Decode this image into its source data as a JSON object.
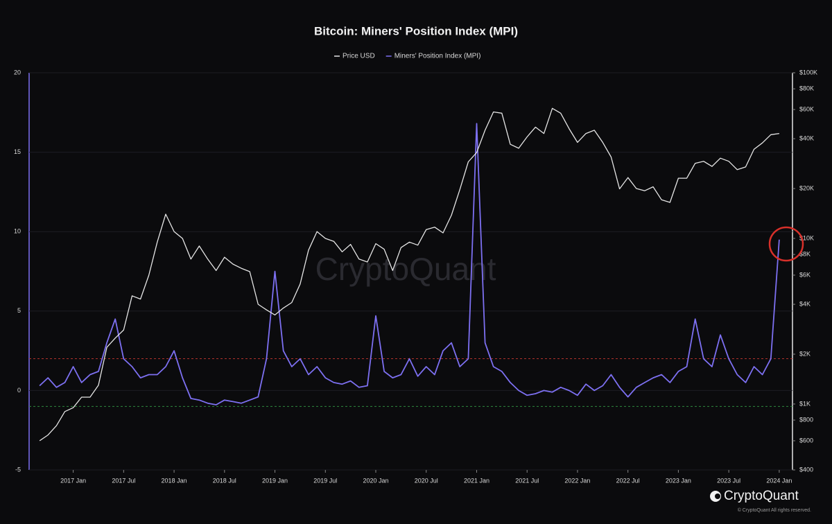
{
  "chart_data": {
    "type": "line",
    "title": "Bitcoin: Miners' Position Index (MPI)",
    "x": [
      "2016-09",
      "2016-10",
      "2016-11",
      "2016-12",
      "2017-01",
      "2017-02",
      "2017-03",
      "2017-04",
      "2017-05",
      "2017-06",
      "2017-07",
      "2017-08",
      "2017-09",
      "2017-10",
      "2017-11",
      "2017-12",
      "2018-01",
      "2018-02",
      "2018-03",
      "2018-04",
      "2018-05",
      "2018-06",
      "2018-07",
      "2018-08",
      "2018-09",
      "2018-10",
      "2018-11",
      "2018-12",
      "2019-01",
      "2019-02",
      "2019-03",
      "2019-04",
      "2019-05",
      "2019-06",
      "2019-07",
      "2019-08",
      "2019-09",
      "2019-10",
      "2019-11",
      "2019-12",
      "2020-01",
      "2020-02",
      "2020-03",
      "2020-04",
      "2020-05",
      "2020-06",
      "2020-07",
      "2020-08",
      "2020-09",
      "2020-10",
      "2020-11",
      "2020-12",
      "2021-01",
      "2021-02",
      "2021-03",
      "2021-04",
      "2021-05",
      "2021-06",
      "2021-07",
      "2021-08",
      "2021-09",
      "2021-10",
      "2021-11",
      "2021-12",
      "2022-01",
      "2022-02",
      "2022-03",
      "2022-04",
      "2022-05",
      "2022-06",
      "2022-07",
      "2022-08",
      "2022-09",
      "2022-10",
      "2022-11",
      "2022-12",
      "2023-01",
      "2023-02",
      "2023-03",
      "2023-04",
      "2023-05",
      "2023-06",
      "2023-07",
      "2023-08",
      "2023-09",
      "2023-10",
      "2023-11",
      "2023-12",
      "2024-01"
    ],
    "xlim": [
      "2016-08",
      "2024-02"
    ],
    "xticks": [
      {
        "value": "2017-01",
        "label": "2017 Jan"
      },
      {
        "value": "2017-07",
        "label": "2017 Jul"
      },
      {
        "value": "2018-01",
        "label": "2018 Jan"
      },
      {
        "value": "2018-07",
        "label": "2018 Jul"
      },
      {
        "value": "2019-01",
        "label": "2019 Jan"
      },
      {
        "value": "2019-07",
        "label": "2019 Jul"
      },
      {
        "value": "2020-01",
        "label": "2020 Jan"
      },
      {
        "value": "2020-07",
        "label": "2020 Jul"
      },
      {
        "value": "2021-01",
        "label": "2021 Jan"
      },
      {
        "value": "2021-07",
        "label": "2021 Jul"
      },
      {
        "value": "2022-01",
        "label": "2022 Jan"
      },
      {
        "value": "2022-07",
        "label": "2022 Jul"
      },
      {
        "value": "2023-01",
        "label": "2023 Jan"
      },
      {
        "value": "2023-07",
        "label": "2023 Jul"
      },
      {
        "value": "2024-01",
        "label": "2024 Jan"
      }
    ],
    "series": [
      {
        "name": "Price USD",
        "color": "#e6e6e6",
        "axis": "y2",
        "values": [
          600,
          650,
          740,
          900,
          950,
          1100,
          1100,
          1300,
          2200,
          2500,
          2800,
          4500,
          4300,
          6000,
          9500,
          14000,
          11000,
          10000,
          7500,
          9000,
          7500,
          6400,
          7700,
          7000,
          6600,
          6300,
          4000,
          3700,
          3450,
          3800,
          4100,
          5300,
          8500,
          11000,
          10000,
          9600,
          8300,
          9200,
          7500,
          7200,
          9300,
          8600,
          6400,
          8800,
          9500,
          9100,
          11300,
          11700,
          10800,
          13800,
          19700,
          29000,
          33000,
          45000,
          58000,
          57000,
          37000,
          35000,
          41000,
          47000,
          43000,
          61000,
          57000,
          46000,
          38000,
          43000,
          45000,
          38000,
          31000,
          19900,
          23300,
          20000,
          19400,
          20500,
          17100,
          16500,
          23100,
          23100,
          28400,
          29200,
          27200,
          30500,
          29200,
          26000,
          27000,
          34500,
          37700,
          42300,
          43000
        ]
      },
      {
        "name": "Miners' Position Index (MPI)",
        "color": "#7d70f2",
        "values": [
          0.3,
          0.8,
          0.2,
          0.5,
          1.5,
          0.5,
          1.0,
          1.2,
          3.0,
          4.5,
          2.0,
          1.5,
          0.8,
          1.0,
          1.0,
          1.5,
          2.5,
          0.8,
          -0.5,
          -0.6,
          -0.8,
          -0.9,
          -0.6,
          -0.7,
          -0.8,
          -0.6,
          -0.4,
          2.0,
          7.5,
          2.5,
          1.5,
          2.0,
          1.0,
          1.5,
          0.8,
          0.5,
          0.4,
          0.6,
          0.2,
          0.3,
          4.7,
          1.2,
          0.8,
          1.0,
          2.0,
          0.9,
          1.5,
          1.0,
          2.5,
          3.0,
          1.5,
          2.0,
          16.8,
          3.0,
          1.5,
          1.2,
          0.5,
          0.0,
          -0.3,
          -0.2,
          0.0,
          -0.1,
          0.2,
          0.0,
          -0.3,
          0.4,
          0.0,
          0.3,
          1.0,
          0.2,
          -0.4,
          0.2,
          0.5,
          0.8,
          1.0,
          0.5,
          1.2,
          1.5,
          4.5,
          2.0,
          1.5,
          3.5,
          2.0,
          1.0,
          0.5,
          1.5,
          1.0,
          2.0,
          9.5
        ]
      }
    ],
    "ylim": [
      -5,
      20
    ],
    "yticks": [
      -5,
      0,
      5,
      10,
      15,
      20
    ],
    "y2lim": [
      400,
      100000
    ],
    "y2scale": "log",
    "y2ticks": [
      {
        "value": 100000,
        "label": "$100K"
      },
      {
        "value": 80000,
        "label": "$80K"
      },
      {
        "value": 60000,
        "label": "$60K"
      },
      {
        "value": 40000,
        "label": "$40K"
      },
      {
        "value": 20000,
        "label": "$20K"
      },
      {
        "value": 10000,
        "label": "$10K"
      },
      {
        "value": 8000,
        "label": "$8K"
      },
      {
        "value": 6000,
        "label": "$6K"
      },
      {
        "value": 4000,
        "label": "$4K"
      },
      {
        "value": 2000,
        "label": "$2K"
      },
      {
        "value": 1000,
        "label": "$1K"
      },
      {
        "value": 800,
        "label": "$800"
      },
      {
        "value": 600,
        "label": "$600"
      },
      {
        "value": 400,
        "label": "$400"
      }
    ],
    "reference_lines": [
      {
        "value": 2,
        "color": "#b3322c"
      },
      {
        "value": -1,
        "color": "#2f8a3e"
      }
    ],
    "grid": true,
    "watermark": "CryptoQuant",
    "logo": "CryptoQuant",
    "copyright": "© CryptoQuant All rights reserved."
  }
}
